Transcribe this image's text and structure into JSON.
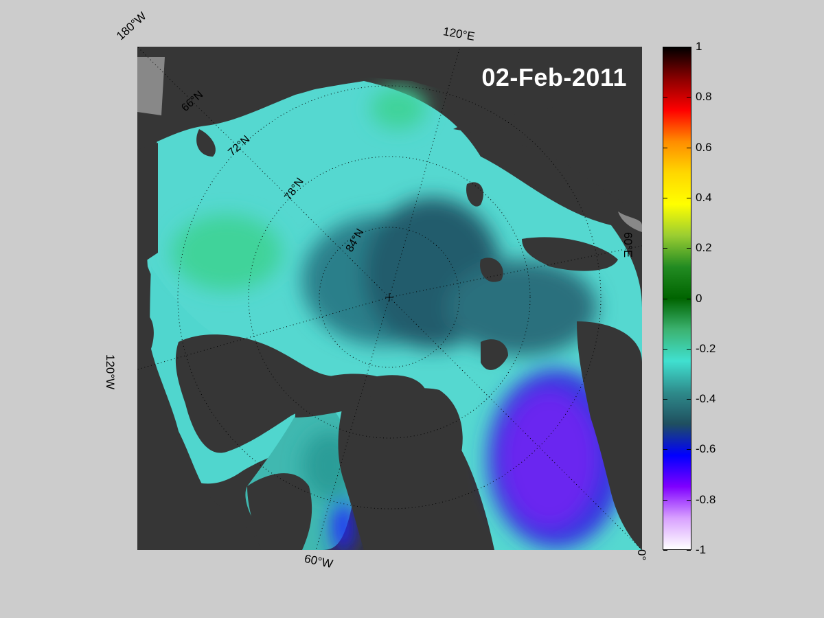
{
  "date": "02-Feb-2011",
  "meridian_labels": {
    "w180": "180°W",
    "e120": "120°E",
    "e60": "60°E",
    "w120": "120°W",
    "w60": "60°W",
    "zero": "0°"
  },
  "latitude_labels": [
    "66°N",
    "72°N",
    "78°N",
    "84°N"
  ],
  "colorbar": {
    "min": -1,
    "max": 1,
    "ticks": [
      "1",
      "0.8",
      "0.6",
      "0.4",
      "0.2",
      "0",
      "-0.2",
      "-0.4",
      "-0.6",
      "-0.8",
      "-1"
    ],
    "colors": [
      "#000000",
      "#8b0000",
      "#ff0000",
      "#ff8c00",
      "#ffd700",
      "#ffff00",
      "#9acd32",
      "#228b22",
      "#006400",
      "#3cb371",
      "#40e0d0",
      "#2e8b8b",
      "#1f4f5f",
      "#0000ff",
      "#7f00ff",
      "#d8a0ff",
      "#ffffff"
    ]
  }
}
